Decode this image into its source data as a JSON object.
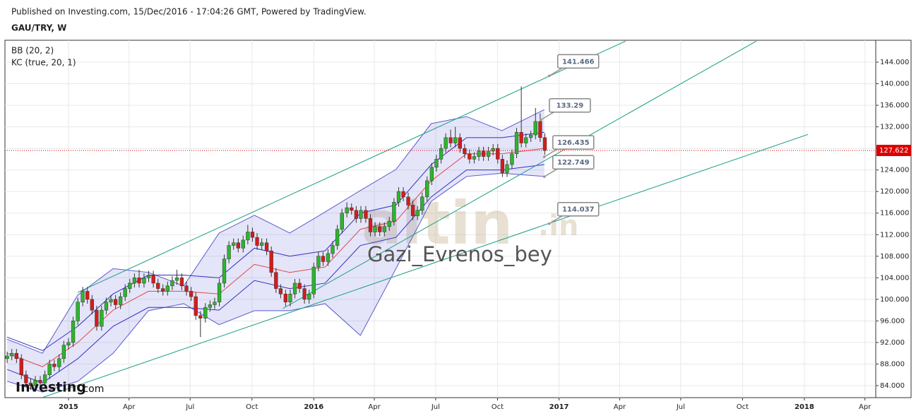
{
  "header": {
    "published": "Published on Investing.com, 15/Dec/2016 - 17:04:26 GMT, Powered by TradingView.",
    "symbol": "GAU/TRY, W"
  },
  "legend": [
    "BB (20, 2)",
    "KC (true, 20, 1)"
  ],
  "watermarks": {
    "logo": "Investing",
    ".com": ".com",
    "site": "altin",
    "site_suffix": ".in",
    "author": "Gazi_Evrenos_bey"
  },
  "chart_data": {
    "type": "candlestick",
    "up_color": "#2db52d",
    "down_color": "#d41c1c",
    "grid": true,
    "xlim": [
      2014.741,
      2018.291
    ],
    "ylim": [
      81.77,
      148.06
    ],
    "xticks": [
      2015,
      {
        "value": 2015.247,
        "label": "Apr"
      },
      {
        "value": 2015.496,
        "label": "Jul"
      },
      {
        "value": 2015.748,
        "label": "Oct"
      },
      2016,
      {
        "value": 2016.247,
        "label": "Apr"
      },
      {
        "value": 2016.497,
        "label": "Jul"
      },
      {
        "value": 2016.749,
        "label": "Oct"
      },
      2017,
      {
        "value": 2017.247,
        "label": "Apr"
      },
      {
        "value": 2017.496,
        "label": "Jul"
      },
      {
        "value": 2017.748,
        "label": "Oct"
      },
      2018,
      {
        "value": 2018.247,
        "label": "Apr"
      }
    ],
    "yticks": [
      {
        "value": 84,
        "label": "84.000"
      },
      {
        "value": 88,
        "label": "88.000"
      },
      {
        "value": 92,
        "label": "92.000"
      },
      {
        "value": 96,
        "label": "96.000"
      },
      {
        "value": 100,
        "label": "100.000"
      },
      {
        "value": 104,
        "label": "104.000"
      },
      {
        "value": 108,
        "label": "108.000"
      },
      {
        "value": 112,
        "label": "112.000"
      },
      {
        "value": 116,
        "label": "116.000"
      },
      {
        "value": 120,
        "label": "120.000"
      },
      {
        "value": 124,
        "label": "124.000"
      },
      {
        "value": 128,
        "label": "128.000"
      },
      {
        "value": 132,
        "label": "132.000"
      },
      {
        "value": 136,
        "label": "136.000"
      },
      {
        "value": 140,
        "label": "140.000"
      },
      {
        "value": 144,
        "label": "144.000"
      }
    ],
    "x": [
      2014.75,
      2014.769,
      2014.788,
      2014.808,
      2014.827,
      2014.846,
      2014.865,
      2014.885,
      2014.904,
      2014.923,
      2014.942,
      2014.962,
      2014.981,
      2015.0,
      2015.019,
      2015.038,
      2015.058,
      2015.077,
      2015.096,
      2015.115,
      2015.135,
      2015.154,
      2015.173,
      2015.192,
      2015.212,
      2015.231,
      2015.25,
      2015.269,
      2015.288,
      2015.308,
      2015.327,
      2015.346,
      2015.365,
      2015.385,
      2015.404,
      2015.423,
      2015.442,
      2015.462,
      2015.481,
      2015.5,
      2015.519,
      2015.538,
      2015.558,
      2015.577,
      2015.596,
      2015.615,
      2015.635,
      2015.654,
      2015.673,
      2015.692,
      2015.712,
      2015.731,
      2015.75,
      2015.769,
      2015.788,
      2015.808,
      2015.827,
      2015.846,
      2015.865,
      2015.885,
      2015.904,
      2015.923,
      2015.942,
      2015.962,
      2015.981,
      2016.0,
      2016.019,
      2016.038,
      2016.058,
      2016.077,
      2016.096,
      2016.115,
      2016.135,
      2016.154,
      2016.173,
      2016.192,
      2016.212,
      2016.231,
      2016.25,
      2016.269,
      2016.288,
      2016.308,
      2016.327,
      2016.346,
      2016.365,
      2016.385,
      2016.404,
      2016.423,
      2016.442,
      2016.462,
      2016.481,
      2016.5,
      2016.519,
      2016.538,
      2016.558,
      2016.577,
      2016.596,
      2016.615,
      2016.635,
      2016.654,
      2016.673,
      2016.692,
      2016.712,
      2016.731,
      2016.75,
      2016.769,
      2016.788,
      2016.808,
      2016.827,
      2016.846,
      2016.865,
      2016.885,
      2016.904,
      2016.923,
      2016.942
    ],
    "open": [
      89,
      89.5,
      90,
      89,
      86,
      84.5,
      84,
      85,
      84.5,
      86,
      88,
      87.5,
      89,
      91.5,
      92,
      96,
      99.5,
      101.5,
      100,
      98,
      95,
      98,
      99.5,
      100,
      99,
      100.5,
      102,
      103,
      104,
      103,
      104,
      104.5,
      103,
      102,
      101.5,
      102.5,
      103.5,
      104,
      102.5,
      101.5,
      100.5,
      97,
      96.5,
      98.5,
      99,
      99.5,
      103,
      107.5,
      110,
      110.5,
      109.5,
      111,
      112.5,
      111.5,
      110,
      110.5,
      109,
      105,
      102,
      101,
      99.5,
      101,
      103,
      102,
      100,
      101,
      106,
      108,
      107,
      108.5,
      110,
      113,
      116,
      117,
      116.5,
      115,
      116.5,
      115,
      112.5,
      113.5,
      112.5,
      113.5,
      114.5,
      118,
      120,
      119,
      117.5,
      115.5,
      116.5,
      119,
      122,
      124.5,
      126,
      128,
      130,
      129,
      130,
      128,
      127,
      126,
      126.5,
      127.5,
      126.5,
      127.5,
      128,
      126,
      123.5,
      125,
      127,
      131,
      129,
      130,
      130.5,
      133,
      130
    ],
    "high": [
      90.3,
      90.8,
      90.8,
      89.8,
      86.8,
      85.3,
      85.8,
      85.8,
      86.8,
      88.8,
      88.8,
      89.8,
      92.3,
      92.8,
      96.8,
      100.3,
      102.3,
      102.3,
      100.8,
      98.8,
      98.8,
      100.3,
      100.8,
      100.8,
      101.3,
      102.8,
      103.8,
      104.8,
      105.5,
      104.8,
      105.3,
      105.3,
      103.8,
      102.8,
      103.3,
      104.3,
      105.5,
      104.8,
      103.3,
      102.3,
      101.3,
      97.8,
      99.3,
      99.8,
      100.3,
      103.8,
      108.3,
      110.8,
      111.3,
      111.3,
      111.8,
      113.8,
      113.3,
      112.3,
      111.3,
      111.3,
      109.8,
      105.8,
      102.8,
      101.8,
      101.8,
      103.8,
      103.8,
      102.8,
      101.8,
      106.8,
      108.8,
      108.8,
      109.3,
      110.8,
      113.8,
      116.8,
      118,
      117.8,
      117.3,
      117.3,
      117.3,
      115.8,
      114.3,
      114.3,
      114.3,
      115.3,
      118.8,
      120.8,
      120.8,
      119.8,
      118.3,
      117.3,
      119.8,
      122.8,
      125.3,
      126.8,
      128.8,
      130.8,
      131.5,
      132,
      130.8,
      128.8,
      127.8,
      127.3,
      128.3,
      128.3,
      128.3,
      128.8,
      128.8,
      126.8,
      125.8,
      127.8,
      131.8,
      139.5,
      130.8,
      131.3,
      135.5,
      134.5,
      130.8
    ],
    "low": [
      88.2,
      88.7,
      88.2,
      85.2,
      83.7,
      83.2,
      83.2,
      83.7,
      83.7,
      85.2,
      86.7,
      86.7,
      88.2,
      90.7,
      91.2,
      95.2,
      98.7,
      99.2,
      97.2,
      94.2,
      94.2,
      97.2,
      98.7,
      98.2,
      98.2,
      99.7,
      101.2,
      102.2,
      102.2,
      102.2,
      103.2,
      102.2,
      101.2,
      100.7,
      100.7,
      101.7,
      102.7,
      101.7,
      100.7,
      99.7,
      96.2,
      93,
      95.7,
      97.7,
      98.2,
      98.7,
      102.2,
      106.7,
      109.2,
      108.7,
      108.7,
      110.2,
      110.7,
      109.2,
      109.2,
      108.2,
      104.2,
      101.2,
      100.2,
      98.7,
      98.7,
      100.2,
      101.2,
      99.2,
      99.2,
      100.2,
      105.2,
      106.2,
      106.2,
      107.7,
      109.2,
      112.2,
      115.2,
      115.7,
      114.2,
      114.2,
      114.2,
      111.7,
      111.7,
      111.7,
      111.7,
      112.7,
      113.7,
      117.2,
      118.2,
      116.7,
      114.7,
      114.7,
      115.7,
      118.2,
      121.2,
      123.7,
      125.2,
      127.2,
      128.2,
      128.2,
      127.2,
      126.2,
      125.2,
      125.2,
      125.7,
      125.7,
      125.7,
      126.7,
      125.2,
      122.7,
      122.7,
      124.2,
      126.2,
      128.2,
      128.2,
      129.2,
      129.7,
      129.2,
      126.8
    ],
    "close": [
      89.5,
      90,
      89,
      86,
      84.5,
      84,
      85,
      84.5,
      86,
      88,
      87.5,
      89,
      91.5,
      92,
      96,
      99.5,
      101.5,
      100,
      98,
      95,
      98,
      99.5,
      100,
      99,
      100.5,
      102,
      103,
      104,
      103,
      104,
      104.5,
      103,
      102,
      101.5,
      102.5,
      103.5,
      104,
      102.5,
      101.5,
      100.5,
      97,
      96.5,
      98.5,
      99,
      99.5,
      103,
      107.5,
      110,
      110.5,
      109.5,
      111,
      112.5,
      111.5,
      110,
      110.5,
      109,
      105,
      102,
      101,
      99.5,
      101,
      103,
      102,
      100,
      101,
      106,
      108,
      107,
      108.5,
      110,
      113,
      116,
      117,
      116.5,
      115,
      116.5,
      115,
      112.5,
      113.5,
      112.5,
      113.5,
      114.5,
      118,
      120,
      119,
      117.5,
      115.5,
      116.5,
      119,
      122,
      124.5,
      126,
      128,
      130,
      129,
      130,
      128,
      127,
      126,
      126.5,
      127.5,
      126.5,
      127.5,
      128,
      126,
      123.5,
      125,
      127,
      131,
      129,
      130,
      130.5,
      133,
      130,
      127.622
    ],
    "bands": {
      "x": [
        2014.75,
        2014.894,
        2015.038,
        2015.182,
        2015.326,
        2015.47,
        2015.614,
        2015.758,
        2015.902,
        2016.046,
        2016.19,
        2016.335,
        2016.479,
        2016.623,
        2016.767,
        2016.94
      ],
      "bb_upper": [
        92.6,
        90,
        100.8,
        105.7,
        105,
        102.5,
        112.3,
        115.6,
        112.3,
        116.2,
        120.2,
        124.1,
        132.6,
        133.9,
        131.3,
        135.2
      ],
      "bb_lower": [
        84.8,
        82.8,
        84.8,
        90,
        97.9,
        99.2,
        95.3,
        97.9,
        97.9,
        99.2,
        93.3,
        105.7,
        118.2,
        122.8,
        123.4,
        122.8
      ],
      "basis": [
        90,
        87.5,
        92,
        98,
        101.5,
        101.5,
        101,
        106.5,
        105,
        106,
        113,
        114.5,
        122,
        127,
        127,
        128
      ],
      "kc_upper": [
        93,
        90.5,
        95,
        101,
        104.5,
        104.5,
        104,
        109.5,
        108,
        109,
        116,
        117.5,
        125,
        130,
        130,
        131
      ],
      "kc_lower": [
        87,
        84.5,
        89,
        95,
        98.5,
        98.5,
        98,
        103.5,
        102,
        103,
        110,
        111.5,
        119,
        124,
        124,
        125
      ]
    },
    "trend_lines": [
      {
        "x": [
          2015.038,
          2017.271
        ],
        "y": [
          101.3,
          147.9
        ]
      },
      {
        "x": [
          2015.874,
          2017.804
        ],
        "y": [
          98.3,
          147.9
        ]
      },
      {
        "x": [
          2014.894,
          2018.015
        ],
        "y": [
          81.8,
          130.6
        ]
      }
    ],
    "annotations": [
      {
        "value": 141.466,
        "x": 2016.96
      },
      {
        "value": 133.29,
        "x": 2016.926
      },
      {
        "value": 126.435,
        "x": 2016.94
      },
      {
        "value": 122.749,
        "x": 2016.94
      },
      {
        "value": 114.037,
        "x": 2016.96
      }
    ],
    "last_price": 127.622
  }
}
